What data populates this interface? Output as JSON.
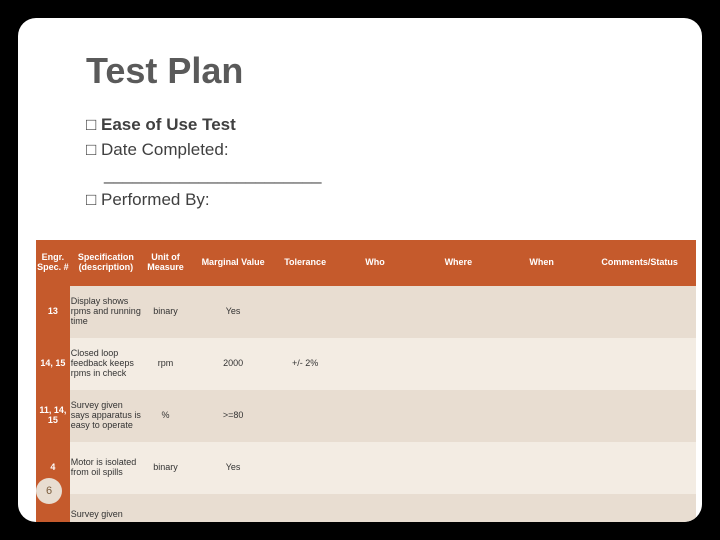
{
  "title": "Test Plan",
  "bullets": {
    "b1_prefix": "□ ",
    "b1": "Ease of Use Test",
    "b2_prefix": "□ ",
    "b2": "Date Completed:",
    "underline": "_______________________",
    "b3_prefix": "□ ",
    "b3": "Performed By:"
  },
  "table": {
    "header_bg": "#c55a2c",
    "header_fg": "#ffffff",
    "band_a": "#e8ddd1",
    "band_b": "#f3ece3",
    "columns": [
      "Engr. Spec. #",
      "Specification (description)",
      "Unit of Measure",
      "Marginal Value",
      "Tolerance",
      "Who",
      "Where",
      "When",
      "Comments/Status"
    ],
    "rows": [
      {
        "spec": "13",
        "desc": "Display shows rpms and running time",
        "unit": "binary",
        "marg": "Yes",
        "tol": "",
        "who": "",
        "where": "",
        "when": "",
        "comm": ""
      },
      {
        "spec": "14, 15",
        "desc": "Closed loop feedback keeps rpms in check",
        "unit": "rpm",
        "marg": "2000",
        "tol": "+/- 2%",
        "who": "",
        "where": "",
        "when": "",
        "comm": ""
      },
      {
        "spec": "11, 14, 15",
        "desc": "Survey given says apparatus is easy to operate",
        "unit": "%",
        "marg": ">=80",
        "tol": "",
        "who": "",
        "where": "",
        "when": "",
        "comm": ""
      },
      {
        "spec": "4",
        "desc": "Motor is isolated from oil spills",
        "unit": "binary",
        "marg": "Yes",
        "tol": "",
        "who": "",
        "where": "",
        "when": "",
        "comm": ""
      },
      {
        "spec": "",
        "desc": "Survey given says",
        "unit": "",
        "marg": "",
        "tol": "",
        "who": "",
        "where": "",
        "when": "",
        "comm": ""
      }
    ]
  },
  "slide_number": "6",
  "slide_num_bg": "#e8ddd1",
  "slide_num_fg": "#7a5c3c"
}
